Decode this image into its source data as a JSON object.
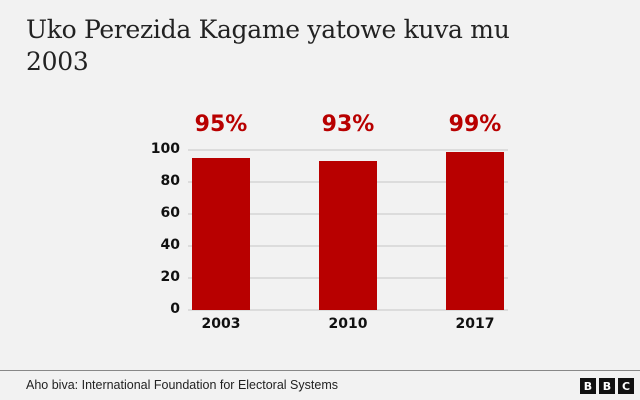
{
  "title": "Uko Perezida Kagame yatowe kuva mu 2003",
  "footer": {
    "source": "Aho biva: International Foundation for Electoral Systems",
    "logo_letters": [
      "B",
      "B",
      "C"
    ]
  },
  "colors": {
    "bar": "#b80000",
    "label": "#b80000",
    "background": "#f2f2f2",
    "grid": "#dcdcdc"
  },
  "chart_data": {
    "type": "bar",
    "title": "Uko Perezida Kagame yatowe kuva mu 2003",
    "categories": [
      "2003",
      "2010",
      "2017"
    ],
    "values": [
      95,
      93,
      99
    ],
    "value_labels": [
      "95%",
      "93%",
      "99%"
    ],
    "xlabel": "",
    "ylabel": "",
    "ylim": [
      0,
      100
    ],
    "yticks": [
      "0",
      "20",
      "40",
      "60",
      "80",
      "100"
    ],
    "grid": true,
    "legend": null,
    "source": "Aho biva: International Foundation for Electoral Systems"
  }
}
